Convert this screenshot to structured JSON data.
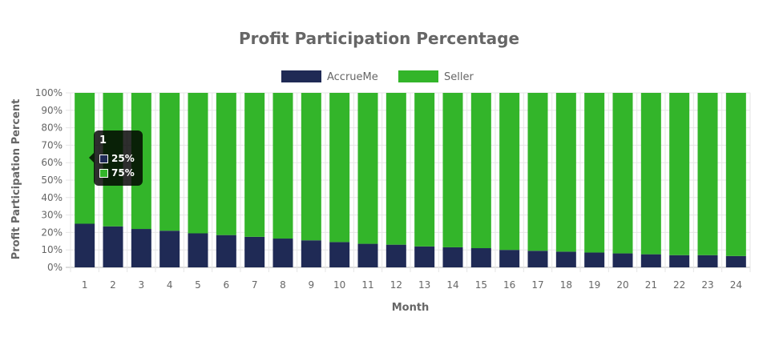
{
  "chart_data": {
    "type": "bar",
    "stacked": true,
    "title": "Profit Participation Percentage",
    "xlabel": "Month",
    "ylabel": "Profit Participation Percent",
    "categories": [
      "1",
      "2",
      "3",
      "4",
      "5",
      "6",
      "7",
      "8",
      "9",
      "10",
      "11",
      "12",
      "13",
      "14",
      "15",
      "16",
      "17",
      "18",
      "19",
      "20",
      "21",
      "22",
      "23",
      "24"
    ],
    "ylim": [
      0,
      100
    ],
    "yticks": [
      "0%",
      "10%",
      "20%",
      "30%",
      "40%",
      "50%",
      "60%",
      "70%",
      "80%",
      "90%",
      "100%"
    ],
    "legend_position": "top-center",
    "grid": true,
    "series": [
      {
        "name": "AccrueMe",
        "color": "#1f2a55",
        "values": [
          25,
          23.5,
          22,
          21,
          19.5,
          18.5,
          17.5,
          16.5,
          15.5,
          14.5,
          13.5,
          13,
          12,
          11.5,
          11,
          10,
          9.5,
          9,
          8.5,
          8,
          7.5,
          7,
          7,
          6.5
        ]
      },
      {
        "name": "Seller",
        "color": "#33b52a",
        "values": [
          75,
          76.5,
          78,
          79,
          80.5,
          81.5,
          82.5,
          83.5,
          84.5,
          85.5,
          86.5,
          87,
          88,
          88.5,
          89,
          90,
          90.5,
          91,
          91.5,
          92,
          92.5,
          93,
          93,
          93.5
        ]
      }
    ]
  },
  "tooltip": {
    "title": "1",
    "rows": [
      {
        "label": "25%",
        "color": "#1f2a55"
      },
      {
        "label": "75%",
        "color": "#33b52a"
      }
    ]
  }
}
